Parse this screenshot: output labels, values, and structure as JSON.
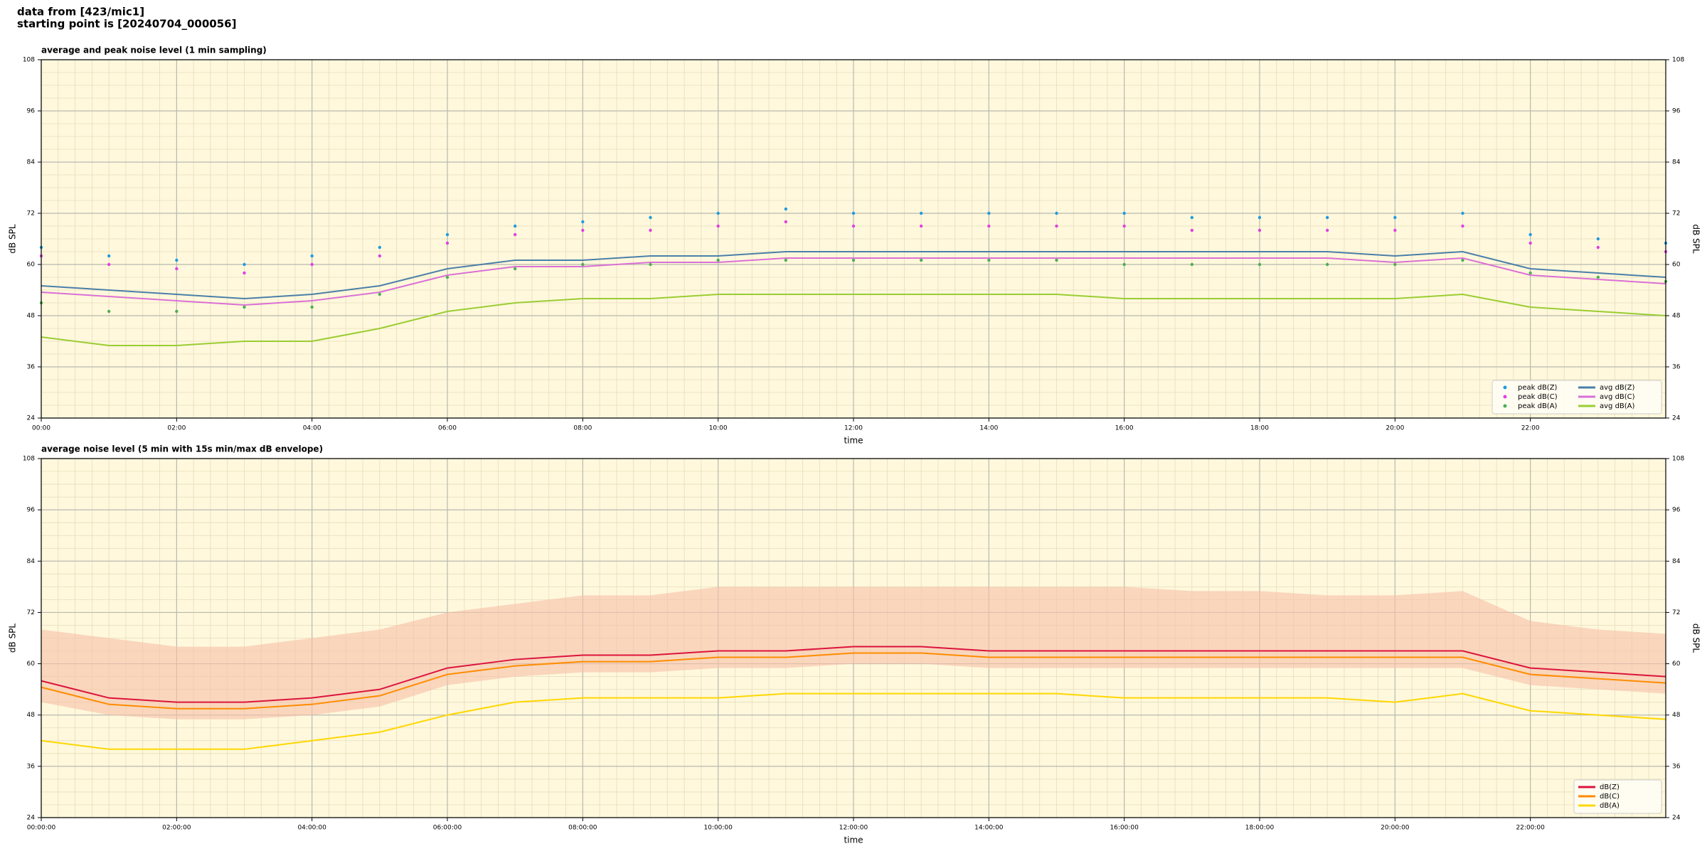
{
  "header": {
    "lines": [
      "data from [423/mic1]",
      "starting point is [20240704_000056]"
    ]
  },
  "chart_data": [
    {
      "type": "line",
      "title": "average and peak noise level (1 min sampling)",
      "xlabel": "time",
      "ylabel": "dB SPL",
      "y2label": "dB SPL",
      "x": [
        0,
        1,
        2,
        3,
        4,
        5,
        6,
        7,
        8,
        9,
        10,
        11,
        12,
        13,
        14,
        15,
        16,
        17,
        18,
        19,
        20,
        21,
        22,
        23,
        24
      ],
      "xlim": [
        0,
        24
      ],
      "xticks": [
        {
          "value": 0,
          "label": "00:00"
        },
        {
          "value": 2,
          "label": "02:00"
        },
        {
          "value": 4,
          "label": "04:00"
        },
        {
          "value": 6,
          "label": "06:00"
        },
        {
          "value": 8,
          "label": "08:00"
        },
        {
          "value": 10,
          "label": "10:00"
        },
        {
          "value": 12,
          "label": "12:00"
        },
        {
          "value": 14,
          "label": "14:00"
        },
        {
          "value": 16,
          "label": "16:00"
        },
        {
          "value": 18,
          "label": "18:00"
        },
        {
          "value": 20,
          "label": "20:00"
        },
        {
          "value": 22,
          "label": "22:00"
        }
      ],
      "ylim": [
        24,
        108
      ],
      "yticks": [
        24,
        36,
        48,
        60,
        72,
        84,
        96,
        108
      ],
      "grid": true,
      "minor_grid": true,
      "legend": "lower right",
      "background": "#fff8dc",
      "series": [
        {
          "name": "peak dB(Z)",
          "type": "scatter",
          "color": "#1f9be0",
          "values": [
            64,
            62,
            61,
            60,
            62,
            64,
            67,
            69,
            70,
            71,
            72,
            73,
            72,
            72,
            72,
            72,
            72,
            71,
            71,
            71,
            71,
            72,
            67,
            66,
            65
          ]
        },
        {
          "name": "peak dB(C)",
          "type": "scatter",
          "color": "#e040e0",
          "values": [
            62,
            60,
            59,
            58,
            60,
            62,
            65,
            67,
            68,
            68,
            69,
            70,
            69,
            69,
            69,
            69,
            69,
            68,
            68,
            68,
            68,
            69,
            65,
            64,
            63
          ]
        },
        {
          "name": "peak dB(A)",
          "type": "scatter",
          "color": "#4caf50",
          "values": [
            51,
            49,
            49,
            50,
            50,
            53,
            57,
            59,
            60,
            60,
            61,
            61,
            61,
            61,
            61,
            61,
            60,
            60,
            60,
            60,
            60,
            61,
            58,
            57,
            56
          ]
        },
        {
          "name": "avg dB(Z)",
          "type": "line",
          "color": "#4a7fa8",
          "values": [
            55,
            54,
            53,
            52,
            53,
            55,
            59,
            61,
            61,
            62,
            62,
            63,
            63,
            63,
            63,
            63,
            63,
            63,
            63,
            63,
            62,
            63,
            59,
            58,
            57
          ]
        },
        {
          "name": "avg dB(C)",
          "type": "line",
          "color": "#da70d6",
          "values": [
            53.5,
            52.5,
            51.5,
            50.5,
            51.5,
            53.5,
            57.5,
            59.5,
            59.5,
            60.5,
            60.5,
            61.5,
            61.5,
            61.5,
            61.5,
            61.5,
            61.5,
            61.5,
            61.5,
            61.5,
            60.5,
            61.5,
            57.5,
            56.5,
            55.5
          ]
        },
        {
          "name": "avg dB(A)",
          "type": "line",
          "color": "#9acd32",
          "values": [
            43,
            41,
            41,
            42,
            42,
            45,
            49,
            51,
            52,
            52,
            53,
            53,
            53,
            53,
            53,
            53,
            52,
            52,
            52,
            52,
            52,
            53,
            50,
            49,
            48
          ]
        }
      ]
    },
    {
      "type": "line",
      "title": "average noise level (5 min with 15s min/max dB envelope)",
      "xlabel": "time",
      "ylabel": "dB SPL",
      "y2label": "dB SPL",
      "x": [
        0,
        1,
        2,
        3,
        4,
        5,
        6,
        7,
        8,
        9,
        10,
        11,
        12,
        13,
        14,
        15,
        16,
        17,
        18,
        19,
        20,
        21,
        22,
        23,
        24
      ],
      "xlim": [
        0,
        24
      ],
      "xticks": [
        {
          "value": 0,
          "label": "00:00:00"
        },
        {
          "value": 2,
          "label": "02:00:00"
        },
        {
          "value": 4,
          "label": "04:00:00"
        },
        {
          "value": 6,
          "label": "06:00:00"
        },
        {
          "value": 8,
          "label": "08:00:00"
        },
        {
          "value": 10,
          "label": "10:00:00"
        },
        {
          "value": 12,
          "label": "12:00:00"
        },
        {
          "value": 14,
          "label": "14:00:00"
        },
        {
          "value": 16,
          "label": "16:00:00"
        },
        {
          "value": 18,
          "label": "18:00:00"
        },
        {
          "value": 20,
          "label": "20:00:00"
        },
        {
          "value": 22,
          "label": "22:00:00"
        }
      ],
      "ylim": [
        24,
        108
      ],
      "yticks": [
        24,
        36,
        48,
        60,
        72,
        84,
        96,
        108
      ],
      "grid": true,
      "minor_grid": true,
      "legend": "lower right",
      "background": "#fff8dc",
      "envelope": {
        "color": "#f6c0a8",
        "min": [
          51,
          48,
          47,
          47,
          48,
          50,
          55,
          57,
          58,
          58,
          59,
          59,
          60,
          60,
          59,
          59,
          59,
          59,
          59,
          59,
          59,
          59,
          55,
          54,
          53
        ],
        "max": [
          68,
          66,
          64,
          64,
          66,
          68,
          72,
          74,
          76,
          76,
          78,
          78,
          78,
          78,
          78,
          78,
          78,
          77,
          77,
          76,
          76,
          77,
          70,
          68,
          67
        ]
      },
      "series": [
        {
          "name": "dB(Z)",
          "type": "line",
          "color": "#dc143c",
          "values": [
            56,
            52,
            51,
            51,
            52,
            54,
            59,
            61,
            62,
            62,
            63,
            63,
            64,
            64,
            63,
            63,
            63,
            63,
            63,
            63,
            63,
            63,
            59,
            58,
            57
          ]
        },
        {
          "name": "dB(C)",
          "type": "line",
          "color": "#ff8c00",
          "values": [
            54.5,
            50.5,
            49.5,
            49.5,
            50.5,
            52.5,
            57.5,
            59.5,
            60.5,
            60.5,
            61.5,
            61.5,
            62.5,
            62.5,
            61.5,
            61.5,
            61.5,
            61.5,
            61.5,
            61.5,
            61.5,
            61.5,
            57.5,
            56.5,
            55.5
          ]
        },
        {
          "name": "dB(A)",
          "type": "line",
          "color": "#ffd700",
          "values": [
            42,
            40,
            40,
            40,
            42,
            44,
            48,
            51,
            52,
            52,
            52,
            53,
            53,
            53,
            53,
            53,
            52,
            52,
            52,
            52,
            51,
            53,
            49,
            48,
            47
          ]
        }
      ]
    }
  ]
}
